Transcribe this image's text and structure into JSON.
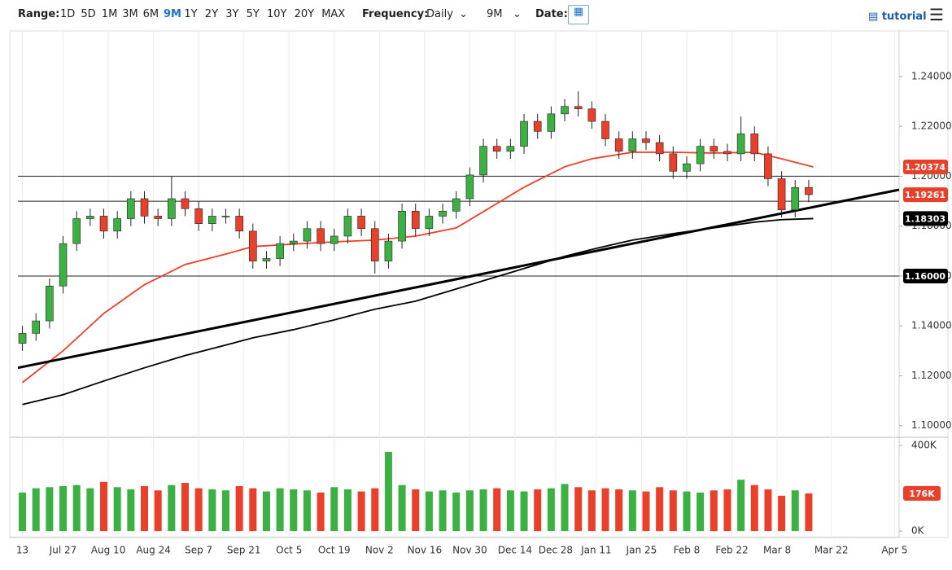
{
  "toolbar": {
    "range_label": "Range:",
    "ranges": [
      "1D",
      "5D",
      "1M",
      "3M",
      "6M",
      "9M",
      "1Y",
      "2Y",
      "3Y",
      "5Y",
      "10Y",
      "20Y",
      "MAX"
    ],
    "active_range": 5,
    "frequency_label": "Frequency:",
    "frequency": "Daily",
    "period": "9M",
    "date_label": "Date:",
    "tutorial": "tutorial"
  },
  "chart_data": {
    "type": "candlestick",
    "xlim": [
      -1,
      194
    ],
    "xticks": [
      {
        "value": 0,
        "label": "13"
      },
      {
        "value": 9,
        "label": "Jul 27"
      },
      {
        "value": 19,
        "label": "Aug 10"
      },
      {
        "value": 29,
        "label": "Aug 24"
      },
      {
        "value": 39,
        "label": "Sep 7"
      },
      {
        "value": 49,
        "label": "Sep 21"
      },
      {
        "value": 59,
        "label": "Oct 5"
      },
      {
        "value": 69,
        "label": "Oct 19"
      },
      {
        "value": 79,
        "label": "Nov 2"
      },
      {
        "value": 89,
        "label": "Nov 16"
      },
      {
        "value": 99,
        "label": "Nov 30"
      },
      {
        "value": 109,
        "label": "Dec 14"
      },
      {
        "value": 118,
        "label": "Dec 28"
      },
      {
        "value": 127,
        "label": "Jan 11"
      },
      {
        "value": 137,
        "label": "Jan 25"
      },
      {
        "value": 147,
        "label": "Feb 8"
      },
      {
        "value": 157,
        "label": "Feb 22"
      },
      {
        "value": 167,
        "label": "Mar 8"
      },
      {
        "value": 179,
        "label": "Mar 22"
      },
      {
        "value": 193,
        "label": "Apr 5"
      }
    ],
    "ylim": [
      1.096,
      1.2576
    ],
    "yticks": [
      {
        "value": 1.24,
        "label": "1.24000"
      },
      {
        "value": 1.22,
        "label": "1.22000"
      },
      {
        "value": 1.2,
        "label": "1.20000"
      },
      {
        "value": 1.18,
        "label": "1.18000"
      },
      {
        "value": 1.16,
        "label": "1.16000"
      },
      {
        "value": 1.14,
        "label": "1.14000"
      },
      {
        "value": 1.12,
        "label": "1.12000"
      },
      {
        "value": 1.1,
        "label": "1.10000"
      }
    ],
    "up_color": "#3cb043",
    "down_color": "#e8402a",
    "candles": {
      "x": [
        0,
        3,
        6,
        9,
        12,
        15,
        18,
        21,
        24,
        27,
        30,
        33,
        36,
        39,
        42,
        45,
        48,
        51,
        54,
        57,
        60,
        63,
        66,
        69,
        72,
        75,
        78,
        81,
        84,
        87,
        90,
        93,
        96,
        99,
        102,
        105,
        108,
        111,
        114,
        117,
        120,
        123,
        126,
        129,
        132,
        135,
        138,
        141,
        144,
        147,
        150,
        153,
        156,
        159,
        162,
        165,
        168,
        171,
        174
      ],
      "open": [
        1.133,
        1.137,
        1.142,
        1.156,
        1.173,
        1.183,
        1.184,
        1.178,
        1.183,
        1.191,
        1.184,
        1.183,
        1.191,
        1.187,
        1.181,
        1.184,
        1.184,
        1.178,
        1.166,
        1.167,
        1.173,
        1.174,
        1.179,
        1.173,
        1.176,
        1.184,
        1.179,
        1.166,
        1.174,
        1.186,
        1.179,
        1.184,
        1.186,
        1.191,
        1.2005,
        1.212,
        1.21,
        1.212,
        1.222,
        1.218,
        1.225,
        1.228,
        1.227,
        1.222,
        1.215,
        1.21,
        1.215,
        1.2135,
        1.209,
        1.202,
        1.205,
        1.212,
        1.21,
        1.209,
        1.217,
        1.209,
        1.199,
        1.1865,
        1.1955
      ],
      "high": [
        1.14,
        1.145,
        1.159,
        1.176,
        1.186,
        1.187,
        1.187,
        1.186,
        1.194,
        1.194,
        1.187,
        1.2,
        1.194,
        1.19,
        1.187,
        1.187,
        1.187,
        1.181,
        1.17,
        1.176,
        1.177,
        1.182,
        1.182,
        1.179,
        1.187,
        1.187,
        1.182,
        1.177,
        1.189,
        1.189,
        1.187,
        1.189,
        1.194,
        1.2035,
        1.215,
        1.215,
        1.215,
        1.225,
        1.225,
        1.228,
        1.231,
        1.234,
        1.23,
        1.225,
        1.218,
        1.218,
        1.218,
        1.2165,
        1.212,
        1.208,
        1.215,
        1.215,
        1.213,
        1.224,
        1.22,
        1.212,
        1.202,
        1.1985,
        1.1985
      ],
      "low": [
        1.13,
        1.134,
        1.139,
        1.153,
        1.17,
        1.18,
        1.175,
        1.175,
        1.18,
        1.181,
        1.18,
        1.18,
        1.184,
        1.178,
        1.178,
        1.181,
        1.175,
        1.163,
        1.163,
        1.164,
        1.17,
        1.171,
        1.17,
        1.17,
        1.173,
        1.176,
        1.161,
        1.163,
        1.171,
        1.176,
        1.176,
        1.181,
        1.183,
        1.188,
        1.1975,
        1.207,
        1.207,
        1.209,
        1.215,
        1.215,
        1.222,
        1.224,
        1.219,
        1.212,
        1.207,
        1.207,
        1.2105,
        1.206,
        1.199,
        1.199,
        1.202,
        1.207,
        1.206,
        1.206,
        1.206,
        1.196,
        1.1835,
        1.1835,
        1.1896
      ],
      "close": [
        1.137,
        1.142,
        1.156,
        1.173,
        1.183,
        1.184,
        1.178,
        1.183,
        1.191,
        1.184,
        1.183,
        1.191,
        1.187,
        1.181,
        1.184,
        1.184,
        1.178,
        1.166,
        1.167,
        1.173,
        1.174,
        1.179,
        1.173,
        1.176,
        1.184,
        1.179,
        1.166,
        1.174,
        1.186,
        1.179,
        1.184,
        1.186,
        1.191,
        1.2005,
        1.212,
        1.21,
        1.212,
        1.222,
        1.218,
        1.225,
        1.228,
        1.227,
        1.222,
        1.215,
        1.21,
        1.215,
        1.2135,
        1.209,
        1.202,
        1.205,
        1.212,
        1.21,
        1.209,
        1.217,
        1.209,
        1.199,
        1.1865,
        1.1955,
        1.19261
      ]
    },
    "lines": [
      {
        "color": "#e8402a",
        "x": [
          0,
          9,
          18,
          27,
          36,
          45,
          51,
          60,
          69,
          78,
          87,
          96,
          102,
          111,
          120,
          126,
          135,
          144,
          153,
          162,
          168,
          175
        ],
        "values": [
          1.1173,
          1.13,
          1.145,
          1.1565,
          1.1646,
          1.1688,
          1.1718,
          1.1728,
          1.1737,
          1.1744,
          1.176,
          1.1793,
          1.1858,
          1.1956,
          1.2038,
          1.207,
          1.2096,
          1.2096,
          1.2093,
          1.2096,
          1.207,
          1.20374
        ]
      },
      {
        "color": "#000000",
        "x": [
          0,
          9,
          18,
          27,
          36,
          45,
          51,
          60,
          69,
          78,
          87,
          96,
          102,
          111,
          120,
          127,
          135,
          144,
          153,
          162,
          168,
          175
        ],
        "values": [
          1.1085,
          1.1124,
          1.1179,
          1.1232,
          1.1281,
          1.1323,
          1.1352,
          1.1385,
          1.1424,
          1.1467,
          1.1499,
          1.1548,
          1.1581,
          1.163,
          1.1679,
          1.1711,
          1.1744,
          1.177,
          1.1793,
          1.1816,
          1.1826,
          1.18303
        ]
      }
    ],
    "trendline": {
      "x": [
        -1,
        194
      ],
      "values": [
        1.1232,
        1.1946
      ]
    },
    "hlines": [
      1.2,
      1.19,
      1.16
    ],
    "price_labels": [
      {
        "value": 1.20374,
        "color": "#e8402a"
      },
      {
        "value": 1.19261,
        "color": "#e8402a"
      },
      {
        "value": 1.18303,
        "color": "#000000"
      },
      {
        "value": {
          "value": 1.16,
          "label": "1.16000"
        },
        "color": "#000000"
      }
    ],
    "volume": {
      "values": [
        180000,
        200000,
        205000,
        210000,
        215000,
        200000,
        230000,
        205000,
        195000,
        210000,
        190000,
        215000,
        225000,
        200000,
        195000,
        190000,
        210000,
        200000,
        185000,
        200000,
        195000,
        190000,
        180000,
        205000,
        195000,
        185000,
        200000,
        370000,
        215000,
        195000,
        185000,
        190000,
        180000,
        190000,
        195000,
        200000,
        190000,
        185000,
        195000,
        200000,
        220000,
        205000,
        190000,
        200000,
        195000,
        190000,
        185000,
        205000,
        190000,
        185000,
        180000,
        190000,
        195000,
        240000,
        215000,
        195000,
        165000,
        190000,
        176000
      ],
      "ylim": [
        -30000,
        427000
      ],
      "yticks": [
        {
          "value": 400000,
          "label": "400K"
        },
        {
          "value": 0,
          "label": "0K"
        }
      ],
      "last": 176000,
      "last_label": "176K"
    }
  }
}
